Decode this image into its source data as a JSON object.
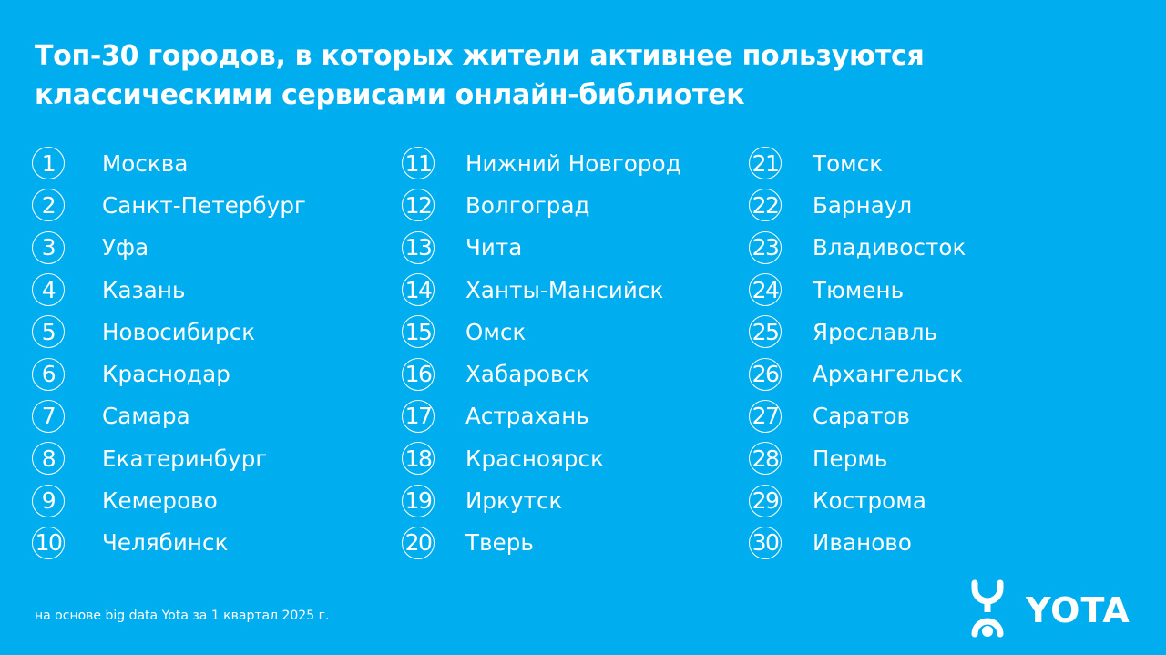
{
  "title_line1": "Топ-30 городов, в которых жители активнее пользуются",
  "title_line2": "классическими сервисами онлайн-библиотек",
  "columns": [
    [
      {
        "rank": "1",
        "city": "Москва"
      },
      {
        "rank": "2",
        "city": "Санкт-Петербург"
      },
      {
        "rank": "3",
        "city": "Уфа"
      },
      {
        "rank": "4",
        "city": "Казань"
      },
      {
        "rank": "5",
        "city": "Новосибирск"
      },
      {
        "rank": "6",
        "city": "Краснодар"
      },
      {
        "rank": "7",
        "city": "Самара"
      },
      {
        "rank": "8",
        "city": "Екатеринбург"
      },
      {
        "rank": "9",
        "city": "Кемерово"
      },
      {
        "rank": "10",
        "city": "Челябинск"
      }
    ],
    [
      {
        "rank": "11",
        "city": "Нижний Новгород"
      },
      {
        "rank": "12",
        "city": "Волгоград"
      },
      {
        "rank": "13",
        "city": "Чита"
      },
      {
        "rank": "14",
        "city": "Ханты-Мансийск"
      },
      {
        "rank": "15",
        "city": "Омск"
      },
      {
        "rank": "16",
        "city": "Хабаровск"
      },
      {
        "rank": "17",
        "city": "Астрахань"
      },
      {
        "rank": "18",
        "city": "Красноярск"
      },
      {
        "rank": "19",
        "city": "Иркутск"
      },
      {
        "rank": "20",
        "city": "Тверь"
      }
    ],
    [
      {
        "rank": "21",
        "city": "Томск"
      },
      {
        "rank": "22",
        "city": "Барнаул"
      },
      {
        "rank": "23",
        "city": "Владивосток"
      },
      {
        "rank": "24",
        "city": "Тюмень"
      },
      {
        "rank": "25",
        "city": "Ярославль"
      },
      {
        "rank": "26",
        "city": "Архангельск"
      },
      {
        "rank": "27",
        "city": "Саратов"
      },
      {
        "rank": "28",
        "city": "Пермь"
      },
      {
        "rank": "29",
        "city": "Кострома"
      },
      {
        "rank": "30",
        "city": "Иваново"
      }
    ]
  ],
  "footnote": "на основе big data Yota за 1 квартал 2025 г.",
  "logo_text": "YOTA",
  "colors": {
    "background": "#00aeef",
    "text": "#ffffff"
  }
}
